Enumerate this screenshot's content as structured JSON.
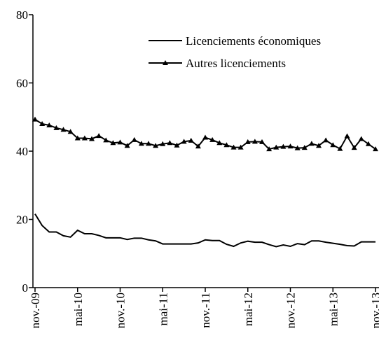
{
  "chart_data": {
    "type": "line",
    "categories": [
      "nov.-09",
      null,
      null,
      null,
      null,
      null,
      "mai-10",
      null,
      null,
      null,
      null,
      null,
      "nov.-10",
      null,
      null,
      null,
      null,
      null,
      "mai-11",
      null,
      null,
      null,
      null,
      null,
      "nov.-11",
      null,
      null,
      null,
      null,
      null,
      "mai-12",
      null,
      null,
      null,
      null,
      null,
      "nov.-12",
      null,
      null,
      null,
      null,
      null,
      "mai-13",
      null,
      null,
      null,
      null,
      null,
      "nov.-13"
    ],
    "series": [
      {
        "name": "Licenciements économiques",
        "color": "#000000",
        "marker": "none",
        "values": [
          21.6,
          18.2,
          16.3,
          16.3,
          15.2,
          14.8,
          16.8,
          15.8,
          15.8,
          15.3,
          14.6,
          14.6,
          14.6,
          14.1,
          14.5,
          14.5,
          14.0,
          13.7,
          12.8,
          12.8,
          12.8,
          12.8,
          12.8,
          13.1,
          14.0,
          13.8,
          13.8,
          12.7,
          12.1,
          13.1,
          13.6,
          13.3,
          13.3,
          12.6,
          12.0,
          12.5,
          12.1,
          12.9,
          12.6,
          13.7,
          13.7,
          13.3,
          13.0,
          12.7,
          12.3,
          12.2,
          13.4,
          13.4,
          13.4
        ]
      },
      {
        "name": "Autres licenciements",
        "color": "#000000",
        "marker": "triangle",
        "values": [
          49.3,
          48.0,
          47.6,
          46.8,
          46.3,
          45.7,
          43.8,
          43.8,
          43.6,
          44.5,
          43.2,
          42.4,
          42.6,
          41.6,
          43.3,
          42.2,
          42.2,
          41.6,
          42.1,
          42.4,
          41.7,
          42.8,
          43.1,
          41.4,
          44.0,
          43.3,
          42.4,
          41.8,
          41.1,
          41.1,
          42.7,
          42.8,
          42.7,
          40.6,
          41.1,
          41.3,
          41.4,
          40.9,
          41.0,
          42.2,
          41.6,
          43.2,
          41.8,
          40.7,
          44.4,
          41.0,
          43.6,
          42.1,
          40.6
        ]
      }
    ],
    "ylim": [
      0,
      80
    ],
    "yticks": [
      0,
      20,
      40,
      60,
      80
    ],
    "grid": false,
    "legend": "upper right"
  }
}
